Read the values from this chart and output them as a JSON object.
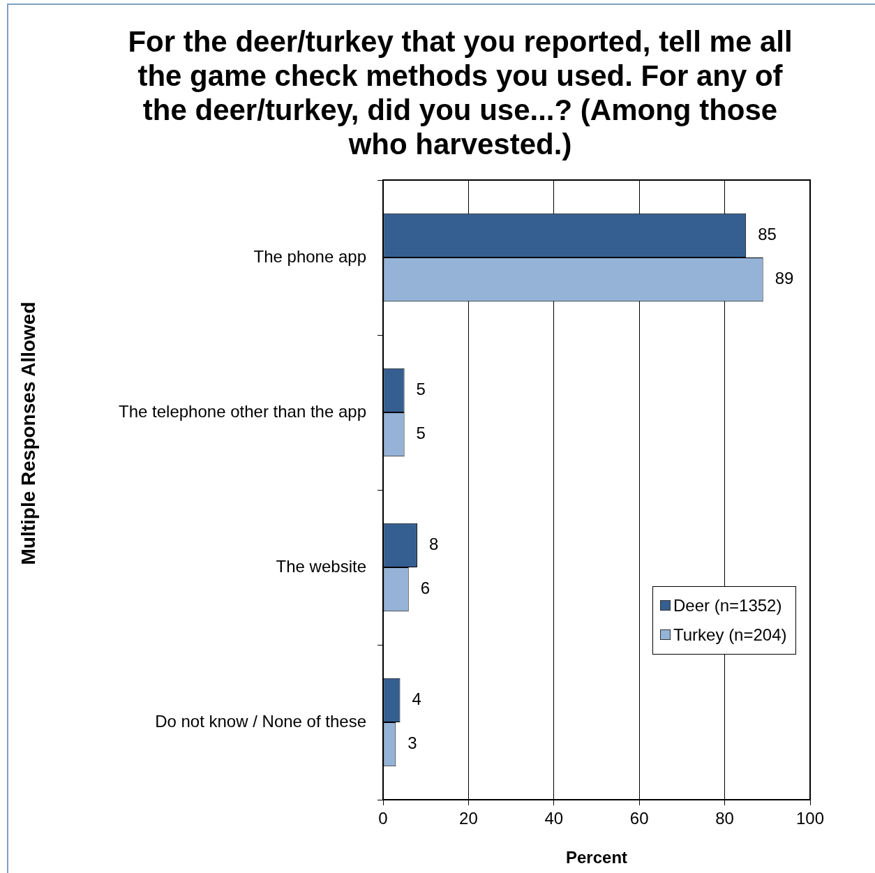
{
  "chart_data": {
    "type": "bar",
    "orientation": "horizontal",
    "title": "For the deer/turkey that you reported, tell me all the game check methods you used. For any of the deer/turkey, did you use...? (Among those who harvested.)",
    "xlabel": "Percent",
    "ylabel": "Multiple Responses Allowed",
    "categories": [
      "The phone app",
      "The telephone other than the app",
      "The website",
      "Do not know / None of these"
    ],
    "series": [
      {
        "name": "Deer (n=1352)",
        "color": "#365f91",
        "values": [
          85,
          5,
          8,
          4
        ]
      },
      {
        "name": "Turkey (n=204)",
        "color": "#95b3d7",
        "values": [
          89,
          5,
          6,
          3
        ]
      }
    ],
    "xlim": [
      0,
      100
    ],
    "xticks": [
      0,
      20,
      40,
      60,
      80,
      100
    ],
    "grid": "x",
    "legend": "right",
    "data_labels": true
  }
}
